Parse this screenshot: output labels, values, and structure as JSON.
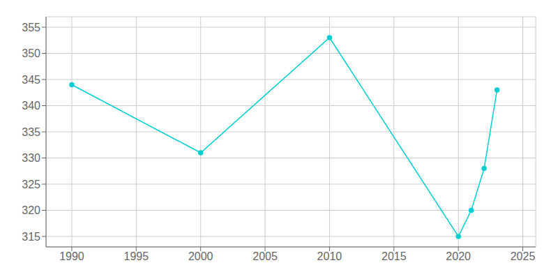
{
  "chart_data": {
    "type": "line",
    "x": [
      1990,
      2000,
      2010,
      2020,
      2021,
      2022,
      2023
    ],
    "values": [
      344,
      331,
      353,
      315,
      320,
      328,
      343
    ],
    "color": "#00CED1",
    "marker": "circle",
    "xlim": [
      1988,
      2026
    ],
    "xticks": [
      1990,
      1995,
      2000,
      2005,
      2010,
      2015,
      2020,
      2025
    ],
    "ylim": [
      313,
      357
    ],
    "yticks": [
      315,
      320,
      325,
      330,
      335,
      340,
      345,
      350,
      355
    ],
    "grid": true
  }
}
